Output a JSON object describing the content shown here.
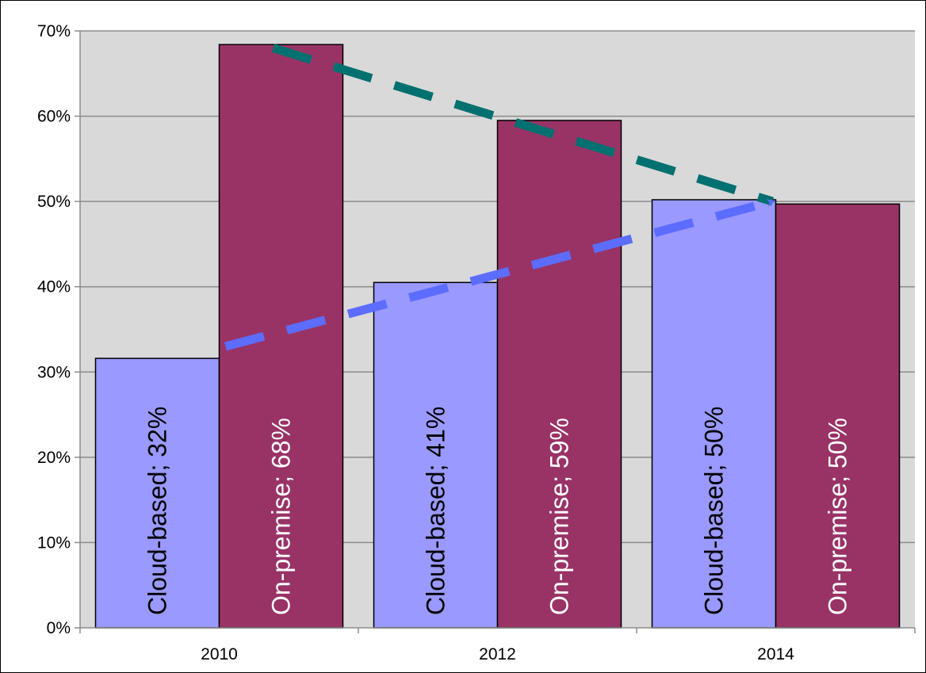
{
  "chart_data": {
    "type": "bar",
    "categories": [
      "2010",
      "2012",
      "2014"
    ],
    "series": [
      {
        "name": "Cloud-based",
        "values": [
          0.32,
          0.41,
          0.5
        ],
        "color": "#9999ff"
      },
      {
        "name": "On-premise",
        "values": [
          0.68,
          0.59,
          0.5
        ],
        "color": "#993366"
      }
    ],
    "bar_values_plotted": {
      "Cloud-based": [
        0.316,
        0.405,
        0.502
      ],
      "On-premise": [
        0.684,
        0.595,
        0.497
      ]
    },
    "data_labels": [
      [
        "Cloud-based; 32%",
        "Cloud-based; 41%",
        "Cloud-based; 50%"
      ],
      [
        "On-premise; 68%",
        "On-premise; 59%",
        "On-premise; 50%"
      ]
    ],
    "ylim": [
      0,
      0.7
    ],
    "y_ticks": [
      "0%",
      "10%",
      "20%",
      "30%",
      "40%",
      "50%",
      "60%",
      "70%"
    ],
    "x_tick_labels": [
      "2010",
      "2012",
      "2014"
    ],
    "title": "",
    "xlabel": "",
    "ylabel": "",
    "grid": true,
    "legend": "none",
    "plot_background": "#d9d9d9",
    "trend_arrows": [
      {
        "name": "on-premise-trend",
        "from": [
          "2010",
          0.68
        ],
        "to": [
          "2014",
          0.5
        ],
        "color": "#007070",
        "style": "dashed"
      },
      {
        "name": "cloud-trend",
        "from": [
          "2010",
          0.33
        ],
        "to": [
          "2014",
          0.5
        ],
        "color": "#5b6cff",
        "style": "dashed"
      }
    ]
  }
}
